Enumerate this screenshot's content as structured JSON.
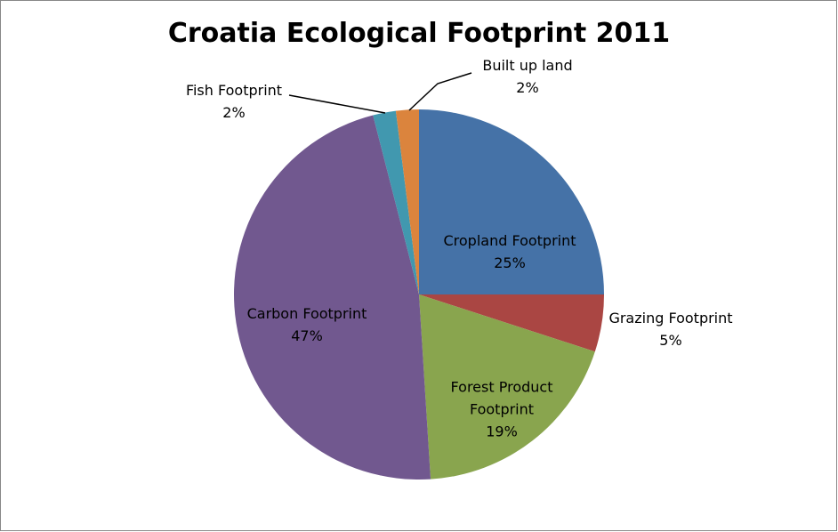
{
  "chart_data": {
    "type": "pie",
    "title": "Croatia Ecological Footprint 2011",
    "categories": [
      "Cropland Footprint",
      "Grazing Footprint",
      "Forest Product Footprint",
      "Carbon Footprint",
      "Fish Footprint",
      "Built up land"
    ],
    "values": [
      25,
      5,
      19,
      47,
      2,
      2
    ],
    "value_labels": [
      "25%",
      "5%",
      "19%",
      "47%",
      "2%",
      "2%"
    ],
    "colors": [
      "#4572a7",
      "#aa4643",
      "#89a54e",
      "#71588f",
      "#4198af",
      "#db843d"
    ]
  }
}
